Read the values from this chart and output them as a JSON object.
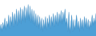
{
  "values": [
    4,
    8,
    3,
    9,
    5,
    12,
    4,
    10,
    6,
    14,
    5,
    13,
    7,
    16,
    6,
    15,
    8,
    18,
    7,
    17,
    9,
    19,
    8,
    18,
    10,
    20,
    9,
    19,
    11,
    21,
    10,
    20,
    9,
    18,
    8,
    17,
    7,
    15,
    6,
    14,
    5,
    13,
    4,
    12,
    3,
    11,
    5,
    13,
    4,
    12,
    6,
    14,
    5,
    13,
    7,
    15,
    6,
    14,
    8,
    16,
    7,
    15,
    9,
    17,
    8,
    16,
    10,
    18,
    7,
    12,
    3,
    16,
    2,
    8,
    14,
    3,
    11,
    4,
    9,
    14,
    5,
    10,
    3,
    12,
    5,
    11,
    4,
    13,
    6,
    12,
    5,
    11,
    4,
    10,
    6,
    14,
    7,
    12,
    8,
    15
  ],
  "fill_color": "#4d9fd6",
  "line_color": "#3a88c0",
  "background_color": "#ffffff",
  "ylim_min": 0,
  "ylim_max": 24
}
